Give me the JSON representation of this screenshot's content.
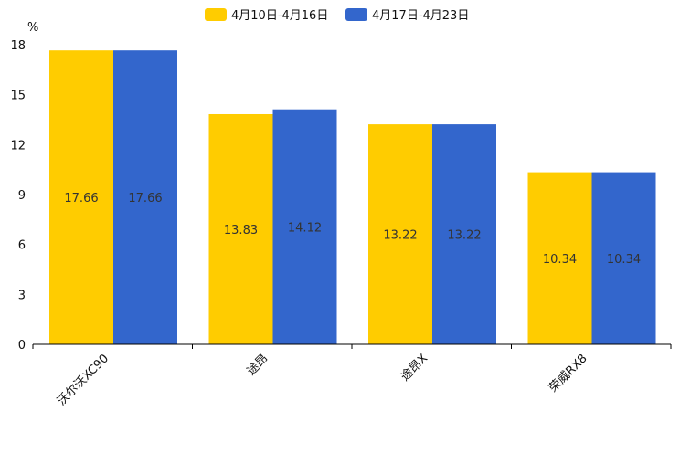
{
  "chart_data": {
    "type": "bar",
    "unit_label": "%",
    "categories": [
      "沃尔沃XC90",
      "途昂",
      "途昂X",
      "荣威RX8"
    ],
    "series": [
      {
        "name": "4月10日-4月16日",
        "color": "#FFCC00",
        "values": [
          17.66,
          13.83,
          13.22,
          10.34
        ]
      },
      {
        "name": "4月17日-4月23日",
        "color": "#3366CC",
        "values": [
          17.66,
          14.12,
          13.22,
          10.34
        ]
      }
    ],
    "ylim": [
      0,
      18
    ],
    "yticks": [
      0,
      3,
      6,
      9,
      12,
      15,
      18
    ],
    "legend_position": "top-center",
    "grid": false
  }
}
